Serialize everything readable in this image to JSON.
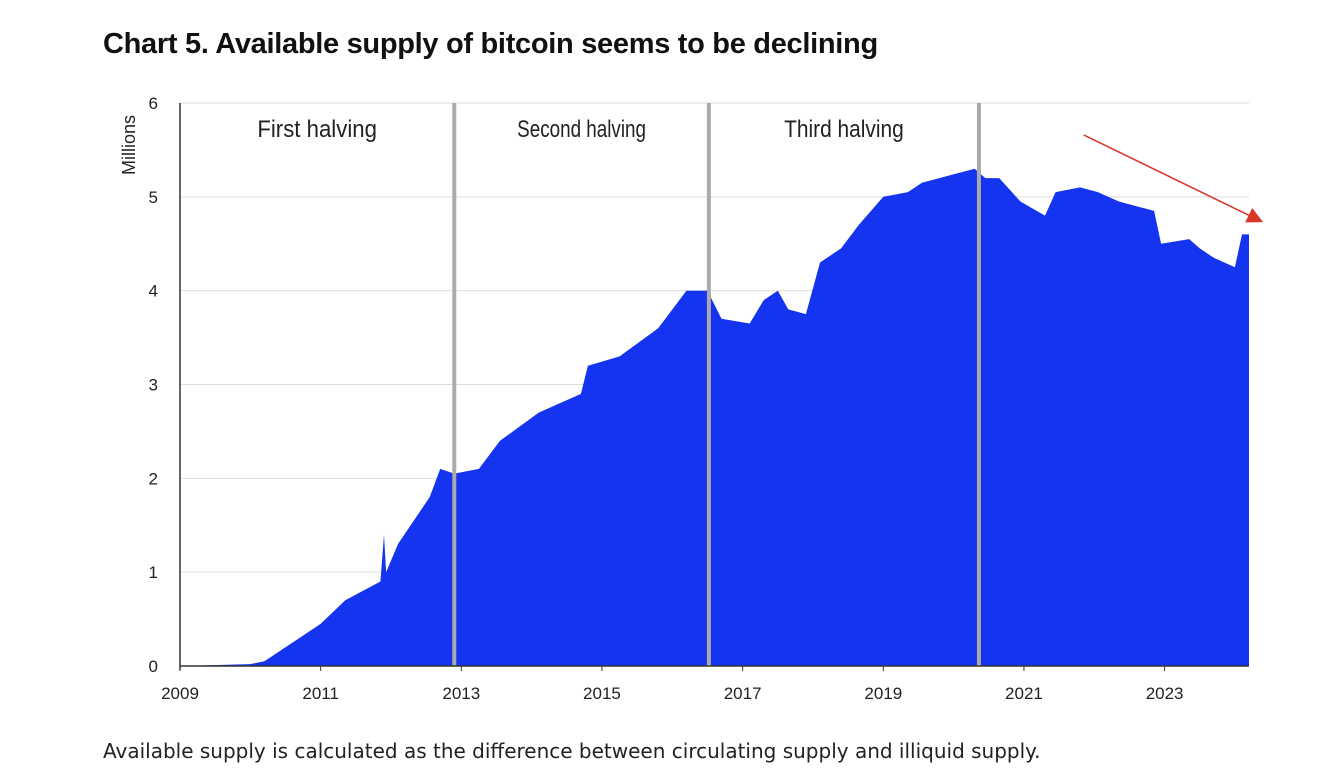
{
  "title": "Chart 5. Available supply of bitcoin seems to be declining",
  "footer": "Available supply is calculated as the difference between circulating supply and illiquid supply.",
  "colors": {
    "area": "#1434f0",
    "halving_line": "#aaaaaa",
    "arrow": "#d9352a",
    "grid": "#dddddd"
  },
  "chart_data": {
    "type": "area",
    "title": "Chart 5. Available supply of bitcoin seems to be declining",
    "xlabel": "",
    "ylabel": "Millions",
    "xlim": [
      2009,
      2024.2
    ],
    "ylim": [
      0,
      6
    ],
    "x_ticks": [
      2009,
      2011,
      2013,
      2015,
      2017,
      2019,
      2021,
      2023
    ],
    "x_tick_labels": [
      "2009",
      "2011",
      "2013",
      "2015",
      "2017",
      "2019",
      "2021",
      "2023"
    ],
    "y_ticks": [
      0,
      1,
      2,
      3,
      4,
      5,
      6
    ],
    "y_tick_labels": [
      "0",
      "1",
      "2",
      "3",
      "4",
      "5",
      "6"
    ],
    "grid": "horizontal",
    "series": [
      {
        "name": "Available supply",
        "x": [
          2009,
          2010.0,
          2010.2,
          2010.7,
          2011.0,
          2011.35,
          2011.85,
          2011.9,
          2011.93,
          2012.1,
          2012.55,
          2012.7,
          2012.9,
          2013.25,
          2013.55,
          2014.1,
          2014.7,
          2014.8,
          2015.25,
          2015.8,
          2016.2,
          2016.5,
          2016.7,
          2017.1,
          2017.3,
          2017.5,
          2017.65,
          2017.9,
          2018.1,
          2018.4,
          2018.65,
          2019.0,
          2019.35,
          2019.55,
          2020.05,
          2020.3,
          2020.45,
          2020.65,
          2020.95,
          2021.3,
          2021.45,
          2021.8,
          2022.05,
          2022.35,
          2022.6,
          2022.85,
          2022.95,
          2023.35,
          2023.5,
          2023.7,
          2024.0,
          2024.1,
          2024.2
        ],
        "values": [
          0,
          0.02,
          0.05,
          0.3,
          0.45,
          0.7,
          0.9,
          1.4,
          1.0,
          1.3,
          1.8,
          2.1,
          2.05,
          2.1,
          2.4,
          2.7,
          2.9,
          3.2,
          3.3,
          3.6,
          4.0,
          4.0,
          3.7,
          3.65,
          3.9,
          4.0,
          3.8,
          3.75,
          4.3,
          4.45,
          4.7,
          5.0,
          5.05,
          5.15,
          5.25,
          5.3,
          5.2,
          5.2,
          4.95,
          4.8,
          5.05,
          5.1,
          5.05,
          4.95,
          4.9,
          4.85,
          4.5,
          4.55,
          4.45,
          4.35,
          4.25,
          4.6,
          4.6
        ]
      }
    ],
    "halvings": [
      {
        "label": "First halving",
        "x": 2012.9
      },
      {
        "label": "Second halving",
        "x": 2016.52
      },
      {
        "label": "Third halving",
        "x": 2020.36
      }
    ],
    "arrow": {
      "from": [
        2021.85,
        5.66
      ],
      "to": [
        2024.4,
        4.73
      ]
    }
  }
}
